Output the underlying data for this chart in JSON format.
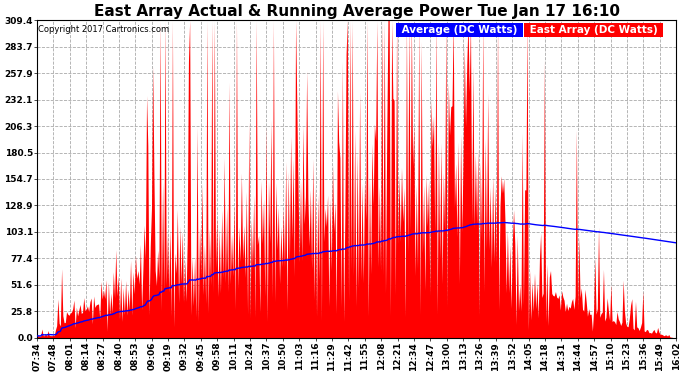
{
  "title": "East Array Actual & Running Average Power Tue Jan 17 16:10",
  "copyright": "Copyright 2017 Cartronics.com",
  "legend_avg": "Average (DC Watts)",
  "legend_east": "East Array (DC Watts)",
  "ylabel_ticks": [
    0.0,
    25.8,
    51.6,
    77.4,
    103.1,
    128.9,
    154.7,
    180.5,
    206.3,
    232.1,
    257.9,
    283.7,
    309.4
  ],
  "xtick_labels": [
    "07:34",
    "07:48",
    "08:01",
    "08:14",
    "08:27",
    "08:40",
    "08:53",
    "09:06",
    "09:19",
    "09:32",
    "09:45",
    "09:58",
    "10:11",
    "10:24",
    "10:37",
    "10:50",
    "11:03",
    "11:16",
    "11:29",
    "11:42",
    "11:55",
    "12:08",
    "12:21",
    "12:34",
    "12:47",
    "13:00",
    "13:13",
    "13:26",
    "13:39",
    "13:52",
    "14:05",
    "14:18",
    "14:31",
    "14:44",
    "14:57",
    "15:10",
    "15:23",
    "15:36",
    "15:49",
    "16:02"
  ],
  "ylim": [
    0.0,
    309.4
  ],
  "bg_color": "#ffffff",
  "grid_color": "#aaaaaa",
  "fill_color": "#ff0000",
  "line_color": "#0000ff",
  "title_fontsize": 11,
  "tick_fontsize": 6.5,
  "legend_fontsize": 7.5
}
